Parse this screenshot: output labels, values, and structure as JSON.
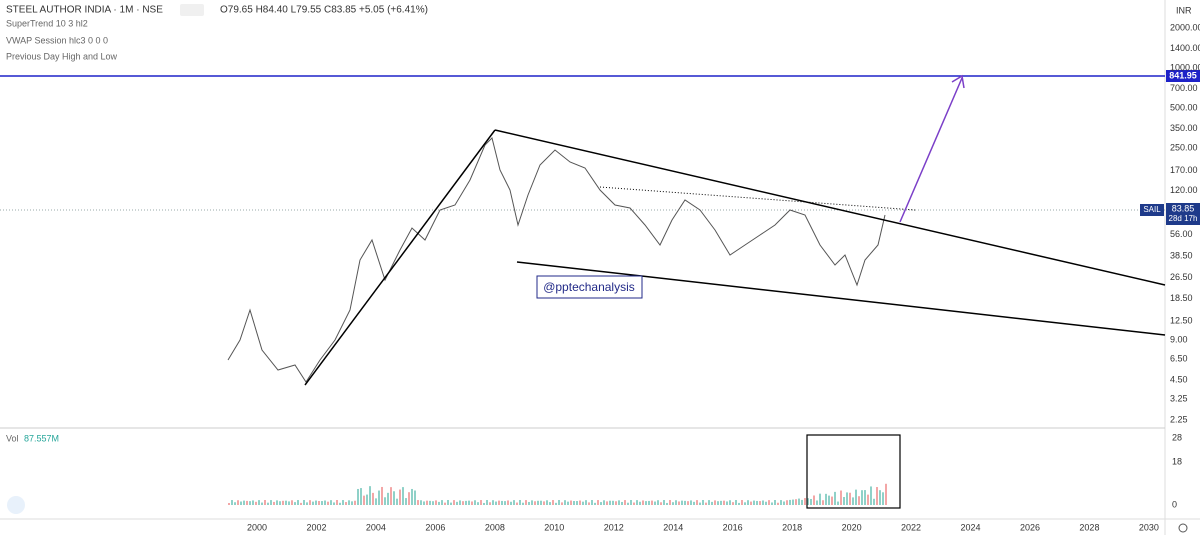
{
  "header": {
    "symbol": "STEEL AUTHOR INDIA · 1M · NSE",
    "ohlc": "O79.65 H84.40 L79.55 C83.85 +5.05 (+6.41%)"
  },
  "indicators": [
    "SuperTrend 10 3 hl2",
    "VWAP Session hlc3 0 0 0",
    "Previous Day High and Low"
  ],
  "currency": "INR",
  "price_axis": {
    "ticks": [
      {
        "value": 2000,
        "label": "2000.00"
      },
      {
        "value": 1400,
        "label": "1400.00"
      },
      {
        "value": 1000,
        "label": "1000.00"
      },
      {
        "value": 700,
        "label": "700.00"
      },
      {
        "value": 500,
        "label": "500.00"
      },
      {
        "value": 350,
        "label": "350.00"
      },
      {
        "value": 250,
        "label": "250.00"
      },
      {
        "value": 170,
        "label": "170.00"
      },
      {
        "value": 120,
        "label": "120.00"
      },
      {
        "value": 56,
        "label": "56.00"
      },
      {
        "value": 38.5,
        "label": "38.50"
      },
      {
        "value": 26.5,
        "label": "26.50"
      },
      {
        "value": 18.5,
        "label": "18.50"
      },
      {
        "value": 12.5,
        "label": "12.50"
      },
      {
        "value": 9,
        "label": "9.00"
      },
      {
        "value": 6.5,
        "label": "6.50"
      },
      {
        "value": 4.5,
        "label": "4.50"
      },
      {
        "value": 3.25,
        "label": "3.25"
      },
      {
        "value": 2.25,
        "label": "2.25"
      }
    ]
  },
  "level_label": {
    "value": 841.95,
    "label": "841.95"
  },
  "last_price": {
    "name": "SAIL",
    "value": 83.85,
    "label": "83.85",
    "countdown": "28d 17h"
  },
  "watermark": "@pptechanalysis",
  "volume": {
    "label": "Vol",
    "value": "87.557M",
    "ticks": [
      28,
      18,
      0
    ]
  },
  "time_axis": [
    2000,
    2002,
    2004,
    2006,
    2008,
    2010,
    2012,
    2014,
    2016,
    2018,
    2020,
    2022,
    2024,
    2026,
    2028,
    2030
  ]
}
